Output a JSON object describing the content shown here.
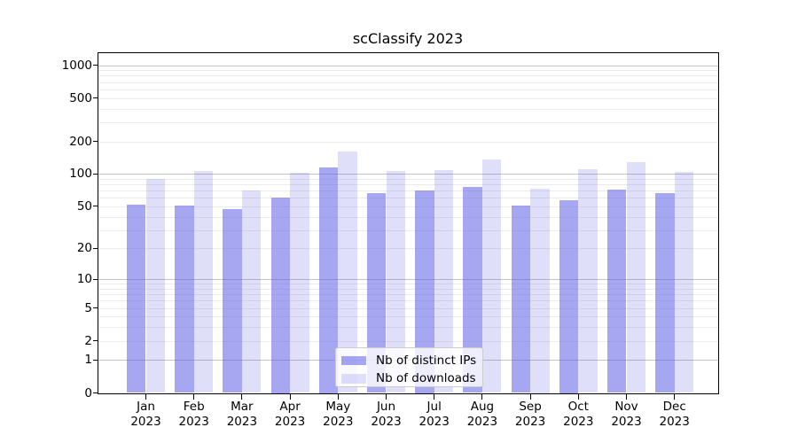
{
  "title": "scClassify 2023",
  "legend": {
    "items": [
      {
        "label": "Nb of distinct IPs",
        "color": "rgba(93,93,230,0.55)"
      },
      {
        "label": "Nb of downloads",
        "color": "rgba(93,93,230,0.20)"
      }
    ]
  },
  "chart_data": {
    "type": "bar",
    "title": "scClassify 2023",
    "yscale": "symlog",
    "grid": "on",
    "legend_position": "bottom-center-inside",
    "categories": [
      "Jan",
      "Feb",
      "Mar",
      "Apr",
      "May",
      "Jun",
      "Jul",
      "Aug",
      "Sep",
      "Oct",
      "Nov",
      "Dec"
    ],
    "year_label": "2023",
    "series": [
      {
        "name": "Nb of distinct IPs",
        "color": "rgba(93,93,230,0.55)",
        "values": [
          52,
          51,
          47,
          61,
          116,
          66,
          71,
          76,
          51,
          57,
          72,
          66
        ]
      },
      {
        "name": "Nb of downloads",
        "color": "rgba(93,93,230,0.20)",
        "values": [
          90,
          107,
          70,
          103,
          160,
          106,
          108,
          137,
          73,
          110,
          129,
          105
        ]
      }
    ],
    "yticks": [
      0,
      1,
      2,
      5,
      10,
      20,
      50,
      100,
      200,
      500,
      1000
    ],
    "ylim": [
      0,
      1285
    ],
    "xlabel": "",
    "ylabel": ""
  }
}
